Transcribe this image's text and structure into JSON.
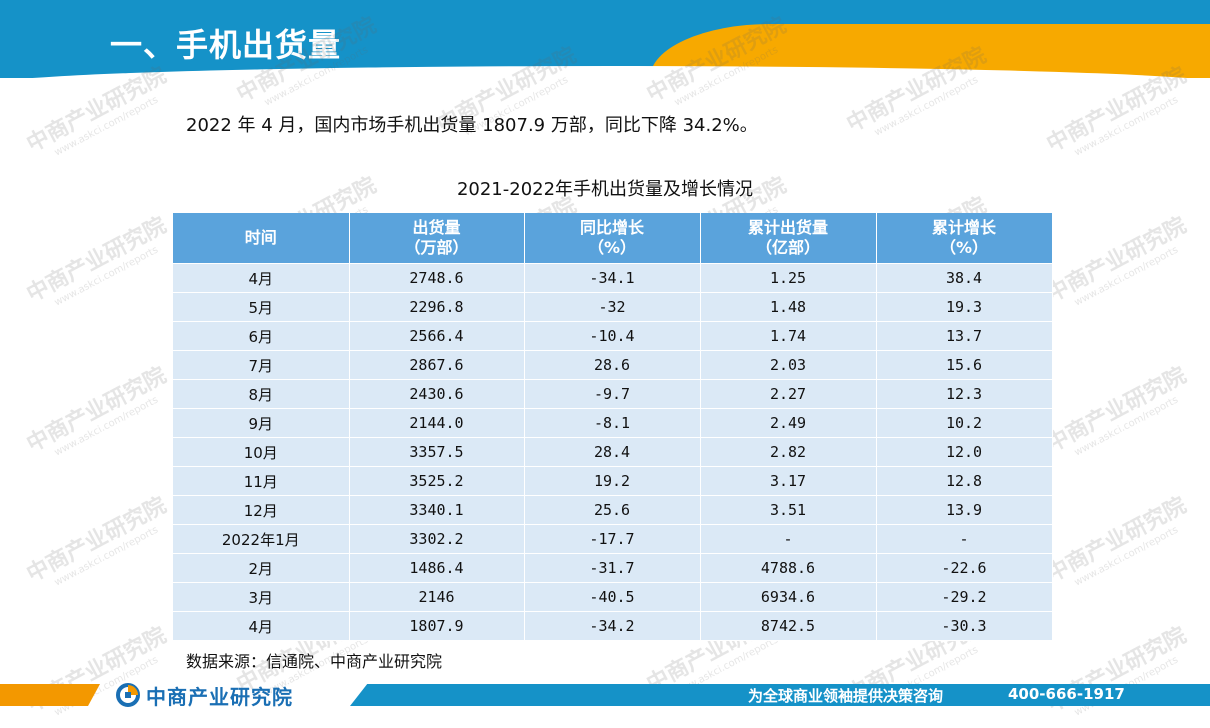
{
  "header": {
    "title": "一、手机出货量"
  },
  "summary": "2022 年 4 月，国内市场手机出货量 1807.9 万部，同比下降 34.2%。",
  "table": {
    "title": "2021-2022年手机出货量及增长情况",
    "columns": [
      {
        "line1": "时间",
        "line2": ""
      },
      {
        "line1": "出货量",
        "line2": "（万部）"
      },
      {
        "line1": "同比增长",
        "line2": "（%）"
      },
      {
        "line1": "累计出货量",
        "line2": "（亿部）"
      },
      {
        "line1": "累计增长",
        "line2": "（%）"
      }
    ],
    "rows": [
      [
        "4月",
        "2748.6",
        "-34.1",
        "1.25",
        "38.4"
      ],
      [
        "5月",
        "2296.8",
        "-32",
        "1.48",
        "19.3"
      ],
      [
        "6月",
        "2566.4",
        "-10.4",
        "1.74",
        "13.7"
      ],
      [
        "7月",
        "2867.6",
        "28.6",
        "2.03",
        "15.6"
      ],
      [
        "8月",
        "2430.6",
        "-9.7",
        "2.27",
        "12.3"
      ],
      [
        "9月",
        "2144.0",
        "-8.1",
        "2.49",
        "10.2"
      ],
      [
        "10月",
        "3357.5",
        "28.4",
        "2.82",
        "12.0"
      ],
      [
        "11月",
        "3525.2",
        "19.2",
        "3.17",
        "12.8"
      ],
      [
        "12月",
        "3340.1",
        "25.6",
        "3.51",
        "13.9"
      ],
      [
        "2022年1月",
        "3302.2",
        "-17.7",
        "-",
        "-"
      ],
      [
        "2月",
        "1486.4",
        "-31.7",
        "4788.6",
        "-22.6"
      ],
      [
        "3月",
        "2146",
        "-40.5",
        "6934.6",
        "-29.2"
      ],
      [
        "4月",
        "1807.9",
        "-34.2",
        "8742.5",
        "-30.3"
      ]
    ]
  },
  "source": "数据来源：信通院、中商产业研究院",
  "footer": {
    "logo_text": "中商产业研究院",
    "slogan": "为全球商业领袖提供决策咨询",
    "phone": "400-666-1917"
  },
  "watermark": {
    "main": "中商产业研究院",
    "sub": "www.askci.com/reports"
  },
  "colors": {
    "header_blue": "#1592c8",
    "accent_orange": "#f7a900",
    "table_header": "#5aa3dc",
    "table_cell": "#dbe9f6",
    "logo_blue": "#1a6fb4"
  }
}
